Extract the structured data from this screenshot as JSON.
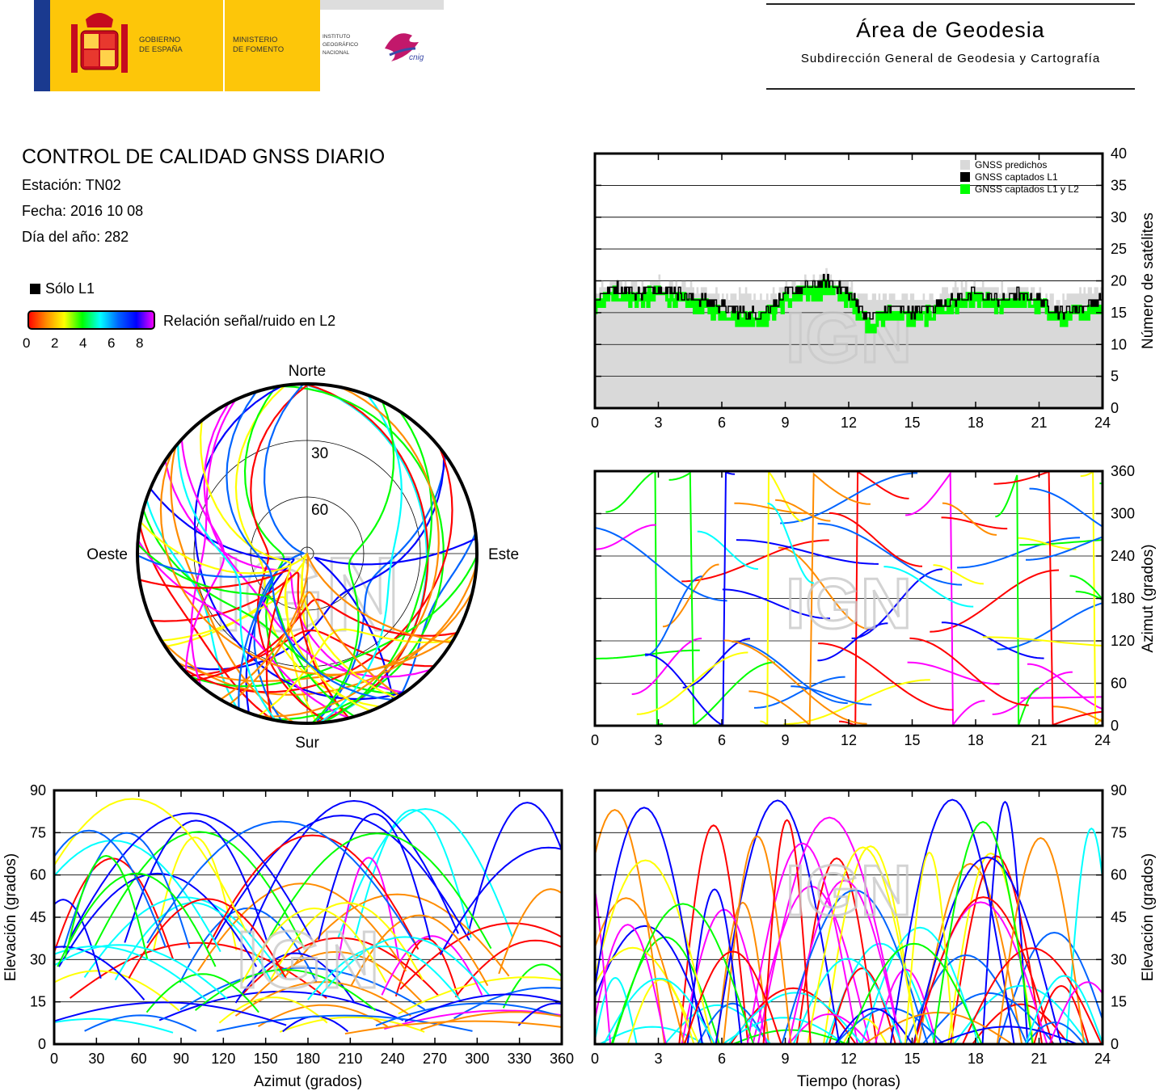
{
  "header": {
    "gov_line1": "GOBIERNO",
    "gov_line2": "DE ESPAÑA",
    "min_line1": "MINISTERIO",
    "min_line2": "DE FOMENTO",
    "ign_line1": "INSTITUTO",
    "ign_line2": "GEOGRÁFICO",
    "ign_line3": "NACIONAL",
    "cnig_logo": "cnig",
    "area_title": "Área de Geodesia",
    "area_subtitle": "Subdirección General de Geodesia y Cartografía"
  },
  "report": {
    "title": "CONTROL DE CALIDAD GNSS DIARIO",
    "station": "Estación: TN02",
    "date": "Fecha: 2016 10 08",
    "doy": "Día del año: 282"
  },
  "legend": {
    "l1_only": "Sólo L1",
    "snr_label": "Relación señal/ruido en L2",
    "snr_ticks": [
      "0",
      "2",
      "4",
      "6",
      "8"
    ],
    "colormap": [
      "#ff0000",
      "#ff8c00",
      "#ffff00",
      "#00ff00",
      "#00ffff",
      "#0064ff",
      "#0000ff",
      "#ff00ff"
    ]
  },
  "colors": {
    "predicted": "#d9d9d9",
    "l1": "#000000",
    "l1l2": "#00ff00",
    "watermark": "#c9c9c9"
  },
  "watermark": "IGN",
  "chart_data": [
    {
      "type": "area",
      "id": "satcount",
      "ylabel": "Número de satélites",
      "xlim": [
        0,
        24
      ],
      "ylim": [
        0,
        40
      ],
      "xticks": [
        "0",
        "3",
        "6",
        "9",
        "12",
        "15",
        "18",
        "21",
        "24"
      ],
      "yticks": [
        "0",
        "5",
        "10",
        "15",
        "20",
        "25",
        "30",
        "35",
        "40"
      ],
      "grid": true,
      "legend_position": "top-right",
      "series": [
        {
          "name": "GNSS predichos",
          "x": [
            0,
            1,
            2,
            3,
            4,
            5,
            6,
            7,
            8,
            9,
            10,
            11,
            12,
            13,
            14,
            15,
            16,
            17,
            18,
            19,
            20,
            21,
            22,
            23,
            24
          ],
          "values": [
            18,
            20,
            19,
            20,
            19,
            19,
            18,
            18,
            17,
            19,
            20,
            21,
            19,
            17,
            18,
            17,
            18,
            19,
            19,
            19,
            19,
            18,
            17,
            18,
            19
          ]
        },
        {
          "name": "GNSS captados L1",
          "x": [
            0,
            1,
            2,
            3,
            4,
            5,
            6,
            7,
            8,
            9,
            10,
            11,
            12,
            13,
            14,
            15,
            16,
            17,
            18,
            19,
            20,
            21,
            22,
            23,
            24
          ],
          "values": [
            17,
            19,
            18,
            19,
            18,
            17,
            16,
            15,
            15,
            18,
            19,
            20,
            18,
            14,
            16,
            15,
            16,
            17,
            18,
            17,
            18,
            17,
            15,
            16,
            17
          ]
        },
        {
          "name": "GNSS captados L1 y L2",
          "x": [
            0,
            1,
            2,
            3,
            4,
            5,
            6,
            7,
            8,
            9,
            10,
            11,
            12,
            13,
            14,
            15,
            16,
            17,
            18,
            19,
            20,
            21,
            22,
            23,
            24
          ],
          "values": [
            16,
            18,
            17,
            18,
            17,
            16,
            15,
            14,
            14,
            17,
            18,
            19,
            17,
            13,
            15,
            14,
            15,
            16,
            17,
            16,
            17,
            16,
            14,
            15,
            16
          ]
        }
      ]
    },
    {
      "type": "scatter",
      "id": "skyplot",
      "direction_labels": {
        "n": "Norte",
        "s": "Sur",
        "e": "Este",
        "w": "Oeste"
      },
      "ring_labels": [
        "30",
        "60"
      ]
    },
    {
      "type": "scatter",
      "id": "azimut-time",
      "ylabel": "Azimut (grados)",
      "xlim": [
        0,
        24
      ],
      "ylim": [
        0,
        360
      ],
      "xticks": [
        "0",
        "3",
        "6",
        "9",
        "12",
        "15",
        "18",
        "21",
        "24"
      ],
      "yticks": [
        "0",
        "60",
        "120",
        "180",
        "240",
        "300",
        "360"
      ],
      "grid": true
    },
    {
      "type": "scatter",
      "id": "elev-azimut",
      "xlabel": "Azimut (grados)",
      "ylabel": "Elevación (grados)",
      "xlim": [
        0,
        360
      ],
      "ylim": [
        0,
        90
      ],
      "xticks": [
        "0",
        "30",
        "60",
        "90",
        "120",
        "150",
        "180",
        "210",
        "240",
        "270",
        "300",
        "330",
        "360"
      ],
      "yticks": [
        "0",
        "15",
        "30",
        "45",
        "60",
        "75",
        "90"
      ],
      "grid": true
    },
    {
      "type": "scatter",
      "id": "elev-time",
      "xlabel": "Tiempo (horas)",
      "ylabel": "Elevación (grados)",
      "xlim": [
        0,
        24
      ],
      "ylim": [
        0,
        90
      ],
      "xticks": [
        "0",
        "3",
        "6",
        "9",
        "12",
        "15",
        "18",
        "21",
        "24"
      ],
      "yticks": [
        "0",
        "15",
        "30",
        "45",
        "60",
        "75",
        "90"
      ],
      "grid": true
    }
  ]
}
